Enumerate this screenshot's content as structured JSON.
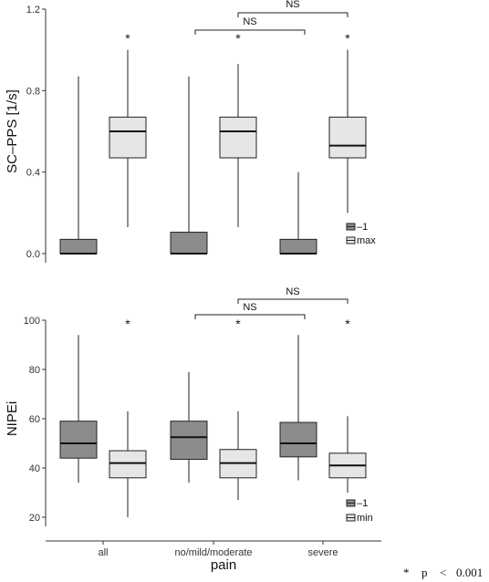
{
  "chart_data": [
    {
      "type": "box",
      "ylabel": "SC–PPS [1/s]",
      "ylim": [
        0,
        1.2
      ],
      "yticks": [
        "0.0",
        "0.4",
        "0.8",
        "1.2"
      ],
      "categories": [
        "all",
        "no/mild/moderate",
        "severe"
      ],
      "legend": {
        "position": "bottom-right",
        "entries": [
          "–1",
          "max"
        ]
      },
      "series": [
        {
          "name": "–1",
          "color": "#8c8c8c",
          "boxes": [
            {
              "min": 0,
              "q1": 0,
              "median": 0,
              "q3": 0.07,
              "max": 0.87
            },
            {
              "min": 0,
              "q1": 0,
              "median": 0,
              "q3": 0.105,
              "max": 0.87
            },
            {
              "min": 0,
              "q1": 0,
              "median": 0,
              "q3": 0.07,
              "max": 0.4
            }
          ]
        },
        {
          "name": "max",
          "color": "#e6e6e6",
          "boxes": [
            {
              "min": 0.13,
              "q1": 0.47,
              "median": 0.6,
              "q3": 0.67,
              "max": 1.0
            },
            {
              "min": 0.13,
              "q1": 0.47,
              "median": 0.6,
              "q3": 0.67,
              "max": 0.93
            },
            {
              "min": 0.2,
              "q1": 0.47,
              "median": 0.53,
              "q3": 0.67,
              "max": 1.0
            }
          ]
        }
      ],
      "stars": [
        "*",
        "*",
        "*"
      ],
      "brackets": [
        {
          "label": "NS",
          "from": "no/mild/moderate",
          "to": "severe",
          "level": 1
        },
        {
          "label": "NS",
          "from": "no/mild/moderate",
          "to": "severe",
          "level": 2
        }
      ]
    },
    {
      "type": "box",
      "ylabel": "NIPEi",
      "ylim": [
        20,
        100
      ],
      "yticks": [
        "20",
        "40",
        "60",
        "80",
        "100"
      ],
      "categories": [
        "all",
        "no/mild/moderate",
        "severe"
      ],
      "xlabel": "pain",
      "legend": {
        "position": "bottom-right",
        "entries": [
          "–1",
          "min"
        ]
      },
      "series": [
        {
          "name": "–1",
          "color": "#8c8c8c",
          "boxes": [
            {
              "min": 34,
              "q1": 44,
              "median": 50,
              "q3": 59,
              "max": 94
            },
            {
              "min": 34,
              "q1": 43.5,
              "median": 52.5,
              "q3": 59,
              "max": 79
            },
            {
              "min": 35,
              "q1": 44.5,
              "median": 50,
              "q3": 58.5,
              "max": 94
            }
          ]
        },
        {
          "name": "min",
          "color": "#e6e6e6",
          "boxes": [
            {
              "min": 20,
              "q1": 36,
              "median": 42,
              "q3": 47,
              "max": 63
            },
            {
              "min": 27,
              "q1": 36,
              "median": 42,
              "q3": 47.5,
              "max": 63
            },
            {
              "min": 30,
              "q1": 36,
              "median": 41,
              "q3": 46,
              "max": 61
            }
          ]
        }
      ],
      "stars": [
        "*",
        "*",
        "*"
      ],
      "brackets": [
        {
          "label": "NS",
          "from": "no/mild/moderate",
          "to": "severe",
          "level": 1
        },
        {
          "label": "NS",
          "from": "no/mild/moderate",
          "to": "severe",
          "level": 2
        }
      ]
    }
  ],
  "footnote": {
    "star": "*",
    "p": "p",
    "lt": "<",
    "value": "0.001"
  }
}
